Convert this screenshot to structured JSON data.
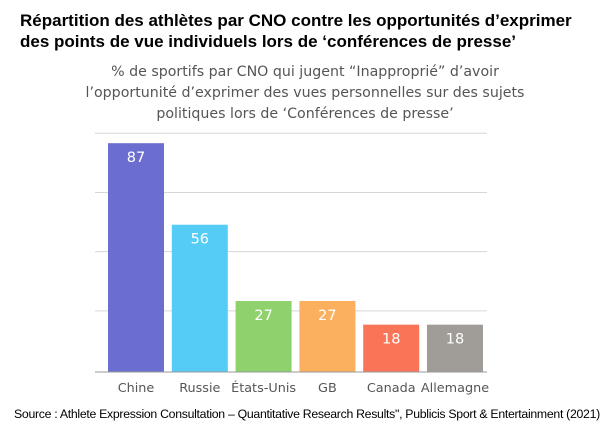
{
  "page": {
    "title": "Répartition des athlètes par CNO contre les opportunités d’exprimer des points de vue individuels lors de ‘conférences de presse’",
    "source": "Source : Athlete Expression Consultation – Quantitative Research Results\", Publicis Sport & Entertainment (2021)"
  },
  "chart_data": {
    "type": "bar",
    "title": "% de sportifs par CNO qui jugent “Inapproprié” d’avoir l’opportunité d’exprimer des vues personnelles sur des sujets politiques lors de ‘Conférences de presse’",
    "categories": [
      "Chine",
      "Russie",
      "États-Unis",
      "GB",
      "Canada",
      "Allemagne"
    ],
    "values": [
      87,
      56,
      27,
      27,
      18,
      18
    ],
    "colors": [
      "#6b6ecf",
      "#55ccf5",
      "#8ed16d",
      "#fbb05f",
      "#fa7558",
      "#a09d99"
    ],
    "ylim": [
      0,
      90
    ],
    "grid": true,
    "legend": "none",
    "data_labels": true,
    "label_color": "#ffffff",
    "grid_color": "#d6d6d6",
    "axis_color": "#999999"
  }
}
